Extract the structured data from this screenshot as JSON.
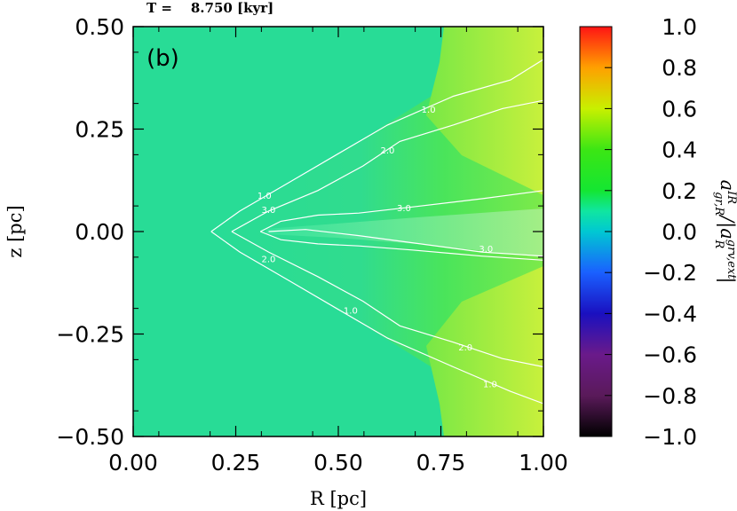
{
  "chart_data": {
    "type": "heatmap",
    "time_label": "T =    8.750 [kyr]",
    "panel_label": "(b)",
    "xlabel": "R [pc]",
    "ylabel": "z [pc]",
    "xlim": [
      0.0,
      1.0
    ],
    "ylim": [
      -0.5,
      0.5
    ],
    "x_ticks": [
      "0.00",
      "0.25",
      "0.50",
      "0.75",
      "1.00"
    ],
    "y_ticks": [
      "0.50",
      "0.25",
      "0.00",
      "−0.25",
      "−0.50"
    ],
    "colorbar": {
      "title_parts": [
        "a",
        "IR",
        "gr,R",
        "/|a",
        "grv,ext",
        "R",
        "|"
      ],
      "range": [
        -1.0,
        1.0
      ],
      "ticks": [
        "1.0",
        "0.8",
        "0.6",
        "0.4",
        "0.2",
        "0.0",
        "−0.2",
        "−0.4",
        "−0.6",
        "−0.8",
        "−1.0"
      ],
      "colormap": [
        {
          "value": -1.0,
          "color": "#000000"
        },
        {
          "value": -0.8,
          "color": "#5a1a5a"
        },
        {
          "value": -0.6,
          "color": "#6a1a8a"
        },
        {
          "value": -0.4,
          "color": "#1a10c0"
        },
        {
          "value": -0.2,
          "color": "#1a60ff"
        },
        {
          "value": 0.0,
          "color": "#00c8d2"
        },
        {
          "value": 0.1,
          "color": "#10e6a0"
        },
        {
          "value": 0.2,
          "color": "#14e632"
        },
        {
          "value": 0.4,
          "color": "#3ce614"
        },
        {
          "value": 0.6,
          "color": "#c8f000"
        },
        {
          "value": 0.8,
          "color": "#ffa000"
        },
        {
          "value": 1.0,
          "color": "#ff1414"
        }
      ]
    },
    "field_colors": {
      "background": "#28dc96",
      "wedge": "#50e650",
      "outer": "#b4ee3c",
      "midplane": "#a0f05a",
      "contour_line": "#ffffff"
    },
    "contours": [
      {
        "level": "1.0",
        "side": "upper",
        "points": [
          [
            0.19,
            0.0
          ],
          [
            0.26,
            0.05
          ],
          [
            0.38,
            0.12
          ],
          [
            0.5,
            0.19
          ],
          [
            0.62,
            0.26
          ],
          [
            0.78,
            0.33
          ],
          [
            0.92,
            0.37
          ],
          [
            1.0,
            0.42
          ]
        ]
      },
      {
        "level": "2.0",
        "side": "upper",
        "points": [
          [
            0.24,
            0.0
          ],
          [
            0.33,
            0.05
          ],
          [
            0.45,
            0.1
          ],
          [
            0.56,
            0.16
          ],
          [
            0.65,
            0.22
          ],
          [
            0.78,
            0.26
          ],
          [
            0.9,
            0.3
          ],
          [
            1.0,
            0.32
          ]
        ]
      },
      {
        "level": "1.0",
        "side": "lower",
        "points": [
          [
            0.19,
            0.0
          ],
          [
            0.26,
            -0.05
          ],
          [
            0.38,
            -0.12
          ],
          [
            0.5,
            -0.19
          ],
          [
            0.62,
            -0.26
          ],
          [
            0.78,
            -0.33
          ],
          [
            0.92,
            -0.39
          ],
          [
            1.0,
            -0.42
          ]
        ]
      },
      {
        "level": "2.0",
        "side": "lower",
        "points": [
          [
            0.24,
            0.0
          ],
          [
            0.33,
            -0.05
          ],
          [
            0.45,
            -0.11
          ],
          [
            0.56,
            -0.17
          ],
          [
            0.65,
            -0.23
          ],
          [
            0.78,
            -0.27
          ],
          [
            0.9,
            -0.31
          ],
          [
            1.0,
            -0.33
          ]
        ]
      },
      {
        "level": "3.0",
        "side": "upper",
        "points": [
          [
            0.31,
            0.0
          ],
          [
            0.36,
            0.025
          ],
          [
            0.45,
            0.04
          ],
          [
            0.55,
            0.045
          ],
          [
            0.68,
            0.06
          ],
          [
            0.85,
            0.08
          ],
          [
            1.0,
            0.1
          ]
        ]
      },
      {
        "level": "3.0",
        "side": "lower",
        "points": [
          [
            0.31,
            0.0
          ],
          [
            0.36,
            -0.02
          ],
          [
            0.45,
            -0.03
          ],
          [
            0.55,
            -0.035
          ],
          [
            0.68,
            -0.045
          ],
          [
            0.85,
            -0.06
          ],
          [
            1.0,
            -0.07
          ]
        ]
      },
      {
        "level": "3.0",
        "side": "mid",
        "points": [
          [
            0.33,
            0.0
          ],
          [
            0.42,
            0.005
          ],
          [
            0.55,
            -0.01
          ],
          [
            0.7,
            -0.03
          ],
          [
            0.85,
            -0.05
          ],
          [
            1.0,
            -0.06
          ]
        ]
      }
    ],
    "contour_labels": [
      {
        "text": "1.0",
        "x": 0.72,
        "y": 0.29
      },
      {
        "text": "2.0",
        "x": 0.62,
        "y": 0.19
      },
      {
        "text": "1.0",
        "x": 0.32,
        "y": 0.08
      },
      {
        "text": "3.0",
        "x": 0.33,
        "y": 0.045
      },
      {
        "text": "3.0",
        "x": 0.66,
        "y": 0.05
      },
      {
        "text": "3.0",
        "x": 0.86,
        "y": -0.05
      },
      {
        "text": "2.0",
        "x": 0.33,
        "y": -0.075
      },
      {
        "text": "1.0",
        "x": 0.53,
        "y": -0.2
      },
      {
        "text": "2.0",
        "x": 0.81,
        "y": -0.29
      },
      {
        "text": "1.0",
        "x": 0.87,
        "y": -0.38
      }
    ]
  }
}
